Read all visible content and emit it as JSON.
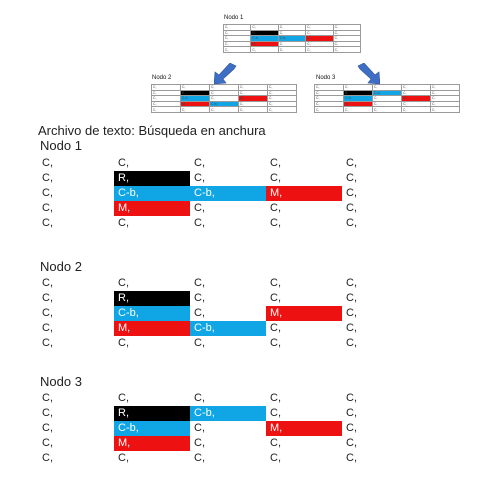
{
  "diagram": {
    "top": {
      "title": "Nodo 1"
    },
    "left": {
      "title": "Nodo 2"
    },
    "right": {
      "title": "Nodo 3"
    }
  },
  "document": {
    "heading": "Archivo de texto: Búsqueda en anchura",
    "nodes": [
      {
        "title": "Nodo 1",
        "rows": [
          [
            {
              "t": "C,",
              "c": ""
            },
            {
              "t": "C,",
              "c": ""
            },
            {
              "t": "C,",
              "c": ""
            },
            {
              "t": "C,",
              "c": ""
            },
            {
              "t": "C,",
              "c": ""
            }
          ],
          [
            {
              "t": "C,",
              "c": ""
            },
            {
              "t": "R,",
              "c": "R"
            },
            {
              "t": "C,",
              "c": ""
            },
            {
              "t": "C,",
              "c": ""
            },
            {
              "t": "C,",
              "c": ""
            }
          ],
          [
            {
              "t": "C,",
              "c": ""
            },
            {
              "t": "C-b,",
              "c": "B"
            },
            {
              "t": "C-b,",
              "c": "B"
            },
            {
              "t": "M,",
              "c": "M"
            },
            {
              "t": "C,",
              "c": ""
            }
          ],
          [
            {
              "t": "C,",
              "c": ""
            },
            {
              "t": "M,",
              "c": "M"
            },
            {
              "t": "C,",
              "c": ""
            },
            {
              "t": "C,",
              "c": ""
            },
            {
              "t": "C,",
              "c": ""
            }
          ],
          [
            {
              "t": "C,",
              "c": ""
            },
            {
              "t": "C,",
              "c": ""
            },
            {
              "t": "C,",
              "c": ""
            },
            {
              "t": "C,",
              "c": ""
            },
            {
              "t": "C,",
              "c": ""
            }
          ]
        ]
      },
      {
        "title": "Nodo 2",
        "rows": [
          [
            {
              "t": "C,",
              "c": ""
            },
            {
              "t": "C,",
              "c": ""
            },
            {
              "t": "C,",
              "c": ""
            },
            {
              "t": "C,",
              "c": ""
            },
            {
              "t": "C,",
              "c": ""
            }
          ],
          [
            {
              "t": "C,",
              "c": ""
            },
            {
              "t": "R,",
              "c": "R"
            },
            {
              "t": "C,",
              "c": ""
            },
            {
              "t": "C,",
              "c": ""
            },
            {
              "t": "C,",
              "c": ""
            }
          ],
          [
            {
              "t": "C,",
              "c": ""
            },
            {
              "t": "C-b,",
              "c": "B"
            },
            {
              "t": "C,",
              "c": ""
            },
            {
              "t": "M,",
              "c": "M"
            },
            {
              "t": "C,",
              "c": ""
            }
          ],
          [
            {
              "t": "C,",
              "c": ""
            },
            {
              "t": "M,",
              "c": "M"
            },
            {
              "t": "C-b,",
              "c": "B"
            },
            {
              "t": "C,",
              "c": ""
            },
            {
              "t": "C,",
              "c": ""
            }
          ],
          [
            {
              "t": "C,",
              "c": ""
            },
            {
              "t": "C,",
              "c": ""
            },
            {
              "t": "C,",
              "c": ""
            },
            {
              "t": "C,",
              "c": ""
            },
            {
              "t": "C,",
              "c": ""
            }
          ]
        ]
      },
      {
        "title": "Nodo 3",
        "rows": [
          [
            {
              "t": "C,",
              "c": ""
            },
            {
              "t": "C,",
              "c": ""
            },
            {
              "t": "C,",
              "c": ""
            },
            {
              "t": "C,",
              "c": ""
            },
            {
              "t": "C,",
              "c": ""
            }
          ],
          [
            {
              "t": "C,",
              "c": ""
            },
            {
              "t": "R,",
              "c": "R"
            },
            {
              "t": "C-b,",
              "c": "B"
            },
            {
              "t": "C,",
              "c": ""
            },
            {
              "t": "C,",
              "c": ""
            }
          ],
          [
            {
              "t": "C,",
              "c": ""
            },
            {
              "t": "C-b,",
              "c": "B"
            },
            {
              "t": "C,",
              "c": ""
            },
            {
              "t": "M,",
              "c": "M"
            },
            {
              "t": "C,",
              "c": ""
            }
          ],
          [
            {
              "t": "C,",
              "c": ""
            },
            {
              "t": "M,",
              "c": "M"
            },
            {
              "t": "C,",
              "c": ""
            },
            {
              "t": "C,",
              "c": ""
            },
            {
              "t": "C,",
              "c": ""
            }
          ],
          [
            {
              "t": "C,",
              "c": ""
            },
            {
              "t": "C,",
              "c": ""
            },
            {
              "t": "C,",
              "c": ""
            },
            {
              "t": "C,",
              "c": ""
            },
            {
              "t": "C,",
              "c": ""
            }
          ]
        ]
      }
    ]
  },
  "colors": {
    "robot": "#000000",
    "blue": "#10a6e6",
    "red": "#ee1111",
    "arrow": "#3f6fc4"
  }
}
